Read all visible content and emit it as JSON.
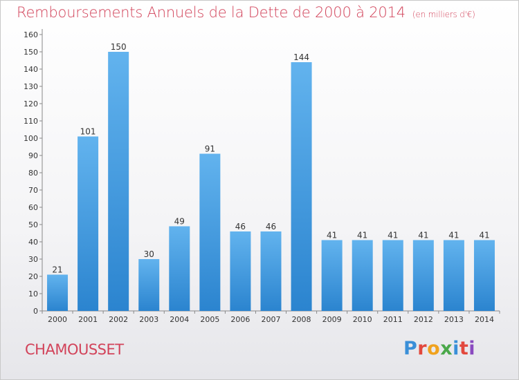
{
  "title": "Remboursements Annuels de la Dette de 2000 à 2014",
  "subtitle": "(en milliers d'€)",
  "commune": "CHAMOUSSET",
  "logo": {
    "text": "Proxiti",
    "letters": [
      {
        "ch": "P",
        "color": "#3a8fd8"
      },
      {
        "ch": "r",
        "color": "#e2483d"
      },
      {
        "ch": "o",
        "color": "#f0a21e"
      },
      {
        "ch": "x",
        "color": "#4aa84a"
      },
      {
        "ch": "i",
        "color": "#3a8fd8"
      },
      {
        "ch": "t",
        "color": "#e2483d"
      },
      {
        "ch": "i",
        "color": "#8a4ac0"
      }
    ]
  },
  "colors": {
    "title": "#d2435a",
    "bar_light": "#62b3ee",
    "bar_dark": "#2b84cf",
    "grid": "#999999"
  },
  "chart_data": {
    "type": "bar",
    "categories": [
      "2000",
      "2001",
      "2002",
      "2003",
      "2004",
      "2005",
      "2006",
      "2007",
      "2008",
      "2009",
      "2010",
      "2011",
      "2012",
      "2013",
      "2014"
    ],
    "values": [
      21,
      101,
      150,
      30,
      49,
      91,
      46,
      46,
      144,
      41,
      41,
      41,
      41,
      41,
      41
    ],
    "ylim": [
      0,
      160
    ],
    "yticks": [
      0,
      10,
      20,
      30,
      40,
      50,
      60,
      70,
      80,
      90,
      100,
      110,
      120,
      130,
      140,
      150,
      160
    ],
    "grid": false,
    "legend": "none"
  }
}
